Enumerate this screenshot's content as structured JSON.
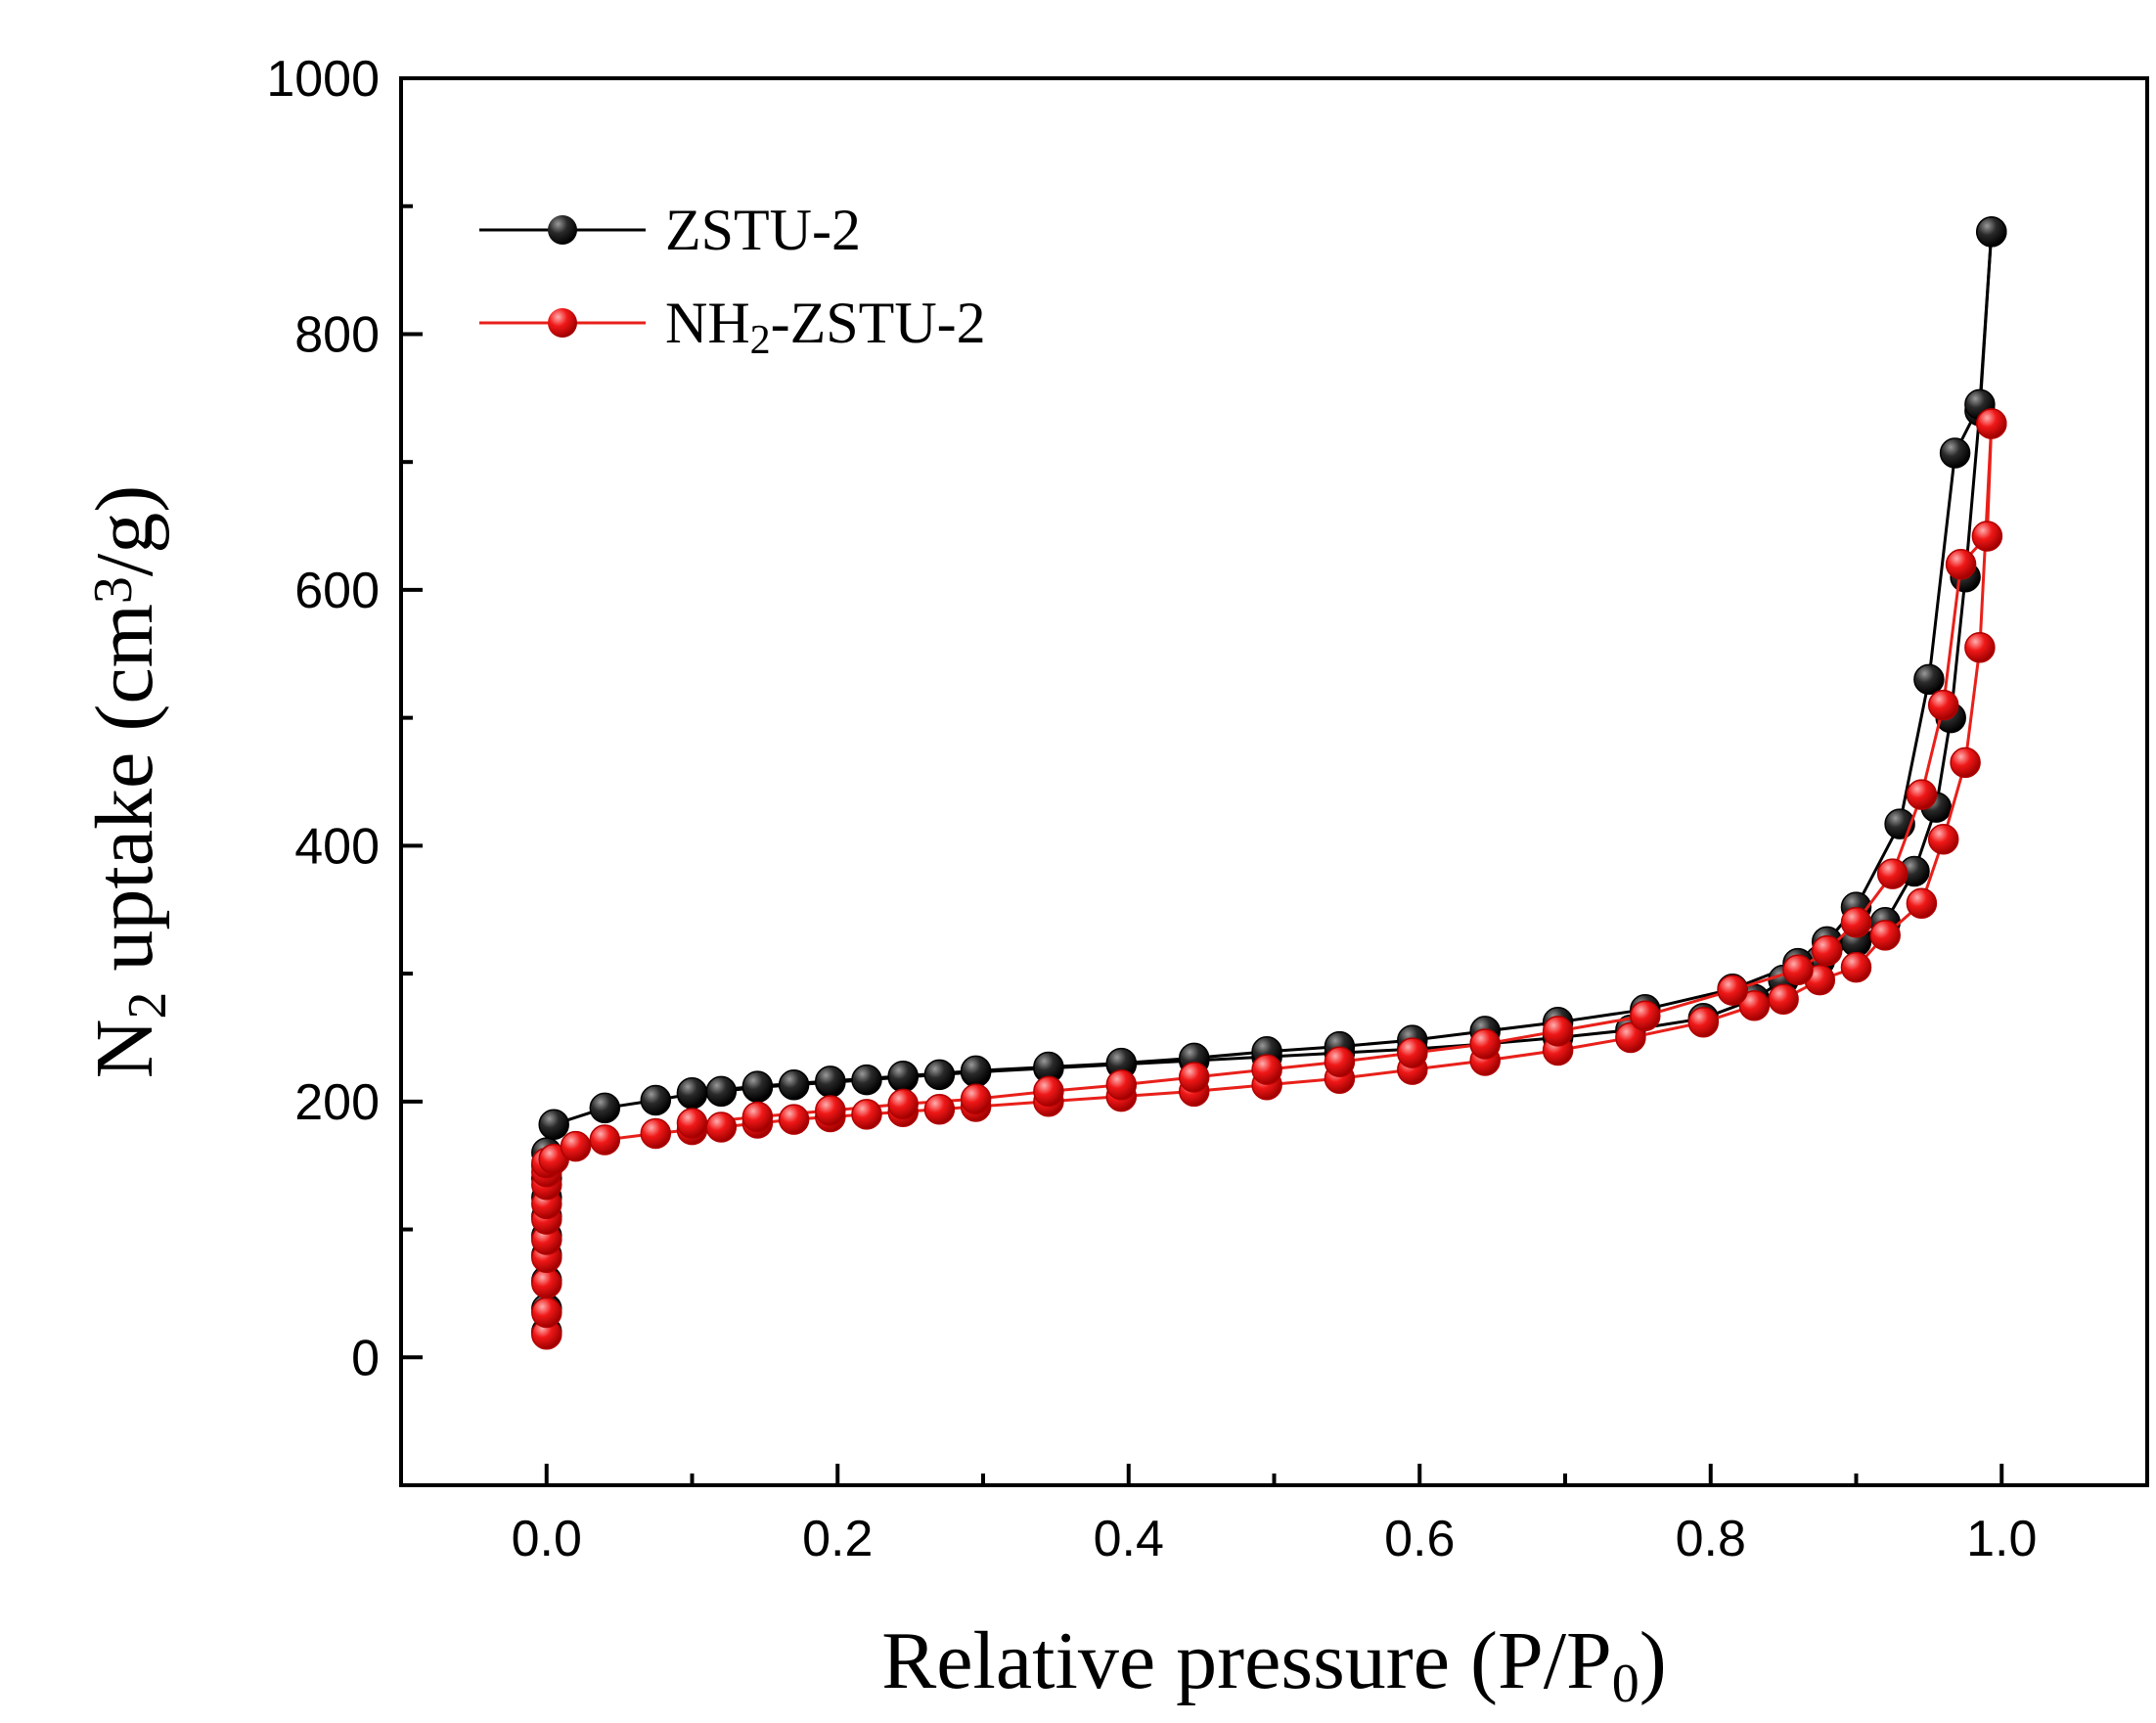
{
  "chart_data": {
    "type": "scatter",
    "title": "",
    "xlabel": {
      "main": "Relative pressure (P/P",
      "sub": "0",
      "tail": ")"
    },
    "ylabel": {
      "pre": "N",
      "sub": "2",
      "mid": " uptake (cm",
      "sup": "3",
      "tail": "/g)"
    },
    "xlim": [
      -0.1,
      1.1
    ],
    "ylim": [
      -100,
      1000
    ],
    "xticks": [
      0.0,
      0.2,
      0.4,
      0.6,
      0.8,
      1.0
    ],
    "xtick_labels": [
      "0.0",
      "0.2",
      "0.4",
      "0.6",
      "0.8",
      "1.0"
    ],
    "yticks": [
      0,
      200,
      400,
      600,
      800,
      1000
    ],
    "ytick_labels": [
      "0",
      "200",
      "400",
      "600",
      "800",
      "1000"
    ],
    "grid": false,
    "legend_position": "top-left",
    "series": [
      {
        "name": "ZSTU-2",
        "legend": {
          "pre": "ZSTU-2",
          "sub": "",
          "tail": ""
        },
        "color": "#000000",
        "marker_color": "#111111",
        "adsorption": {
          "x": [
            0.0,
            0.0,
            0.0,
            0.0,
            0.0,
            0.0,
            0.0,
            0.0,
            0.0,
            0.0,
            0.005,
            0.04,
            0.075,
            0.1,
            0.12,
            0.145,
            0.17,
            0.195,
            0.22,
            0.245,
            0.27,
            0.295,
            0.345,
            0.395,
            0.445,
            0.495,
            0.545,
            0.595,
            0.645,
            0.695,
            0.745,
            0.795,
            0.83,
            0.85,
            0.875,
            0.9,
            0.92,
            0.94,
            0.955,
            0.965,
            0.975,
            0.985,
            0.993
          ],
          "y": [
            20,
            38,
            60,
            80,
            95,
            110,
            125,
            140,
            150,
            160,
            182,
            195,
            201,
            206,
            208,
            211,
            213,
            215,
            217,
            219,
            221,
            223,
            226,
            229,
            232,
            235,
            238,
            241,
            245,
            250,
            256,
            265,
            280,
            295,
            310,
            325,
            340,
            380,
            430,
            500,
            610,
            740,
            880
          ]
        },
        "desorption": {
          "x": [
            0.993,
            0.985,
            0.968,
            0.95,
            0.93,
            0.9,
            0.88,
            0.86,
            0.815,
            0.755,
            0.695,
            0.645,
            0.595,
            0.545,
            0.495,
            0.445,
            0.395,
            0.345,
            0.295,
            0.245,
            0.195,
            0.145,
            0.1
          ],
          "y": [
            880,
            745,
            707,
            530,
            417,
            352,
            325,
            308,
            288,
            272,
            262,
            255,
            248,
            243,
            239,
            234,
            230,
            227,
            224,
            220,
            216,
            212,
            207
          ]
        }
      },
      {
        "name": "NH2-ZSTU-2",
        "legend": {
          "pre": "NH",
          "sub": "2",
          "tail": "-ZSTU-2"
        },
        "color": "#e8201a",
        "marker_color": "#ee1c1c",
        "adsorption": {
          "x": [
            0.0,
            0.0,
            0.0,
            0.0,
            0.0,
            0.0,
            0.0,
            0.0,
            0.0,
            0.0,
            0.005,
            0.02,
            0.04,
            0.075,
            0.1,
            0.12,
            0.145,
            0.17,
            0.195,
            0.22,
            0.245,
            0.27,
            0.295,
            0.345,
            0.395,
            0.445,
            0.495,
            0.545,
            0.595,
            0.645,
            0.695,
            0.745,
            0.795,
            0.83,
            0.85,
            0.875,
            0.9,
            0.92,
            0.945,
            0.96,
            0.975,
            0.985,
            0.993
          ],
          "y": [
            18,
            35,
            58,
            78,
            92,
            108,
            120,
            135,
            145,
            152,
            155,
            165,
            170,
            175,
            178,
            180,
            183,
            186,
            188,
            190,
            192,
            194,
            196,
            200,
            204,
            208,
            213,
            218,
            225,
            232,
            240,
            250,
            262,
            275,
            280,
            295,
            305,
            330,
            355,
            405,
            465,
            555,
            730
          ]
        },
        "desorption": {
          "x": [
            0.993,
            0.99,
            0.972,
            0.96,
            0.945,
            0.925,
            0.9,
            0.88,
            0.86,
            0.815,
            0.755,
            0.695,
            0.645,
            0.595,
            0.545,
            0.495,
            0.445,
            0.395,
            0.345,
            0.295,
            0.245,
            0.195,
            0.145,
            0.1
          ],
          "y": [
            730,
            642,
            620,
            510,
            440,
            378,
            340,
            318,
            303,
            287,
            267,
            255,
            245,
            238,
            231,
            225,
            219,
            213,
            208,
            202,
            198,
            193,
            188,
            183
          ]
        }
      }
    ]
  }
}
